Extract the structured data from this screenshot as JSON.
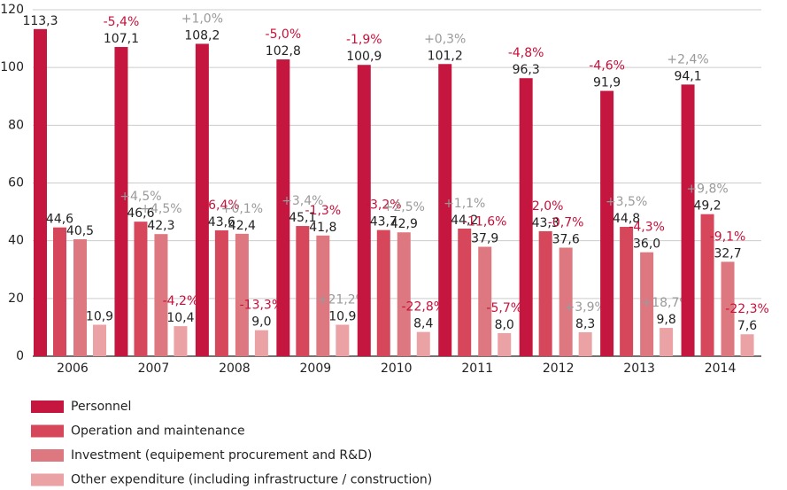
{
  "chart_data": {
    "type": "bar",
    "categories": [
      "2006",
      "2007",
      "2008",
      "2009",
      "2010",
      "2011",
      "2012",
      "2013",
      "2014"
    ],
    "ylim": [
      0,
      120
    ],
    "yticks": [
      0,
      20,
      40,
      60,
      80,
      100,
      120
    ],
    "grid": true,
    "series": [
      {
        "name": "Personnel",
        "color": "#c4163f",
        "values": [
          113.3,
          107.1,
          108.2,
          102.8,
          100.9,
          101.2,
          96.3,
          91.9,
          94.1
        ],
        "value_labels": [
          "113,3",
          "107,1",
          "108,2",
          "102,8",
          "100,9",
          "101,2",
          "96,3",
          "91,9",
          "94,1"
        ],
        "changes": [
          null,
          "-5,4%",
          "+1,0%",
          "-5,0%",
          "-1,9%",
          "+0,3%",
          "-4,8%",
          "-4,6%",
          "+2,4%"
        ]
      },
      {
        "name": "Operation and maintenance",
        "color": "#d6475b",
        "values": [
          44.6,
          46.6,
          43.6,
          45.1,
          43.7,
          44.2,
          43.3,
          44.8,
          49.2
        ],
        "value_labels": [
          "44,6",
          "46,6",
          "43,6",
          "45,1",
          "43,7",
          "44,2",
          "43,3",
          "44,8",
          "49,2"
        ],
        "changes": [
          null,
          "+4,5%",
          "-6,4%",
          "+3,4%",
          "-3,2%",
          "+1,1%",
          "-2,0%",
          "+3,5%",
          "+9,8%"
        ]
      },
      {
        "name": "Investment (equipement procurement and R&D)",
        "color": "#de7880",
        "values": [
          40.5,
          42.3,
          42.4,
          41.8,
          42.9,
          37.9,
          37.6,
          36.0,
          32.7
        ],
        "value_labels": [
          "40,5",
          "42,3",
          "42,4",
          "41,8",
          "42,9",
          "37,9",
          "37,6",
          "36,0",
          "32,7"
        ],
        "changes": [
          null,
          "+4,5%",
          "+0,1%",
          "-1,3%",
          "+2,5%",
          "-11,6%",
          "-0,7%",
          "-4,3%",
          "-9,1%"
        ]
      },
      {
        "name": "Other expenditure (including infrastructure / construction)",
        "color": "#eba2a5",
        "values": [
          10.9,
          10.4,
          9.0,
          10.9,
          8.4,
          8.0,
          8.3,
          9.8,
          7.6
        ],
        "value_labels": [
          "10,9",
          "10,4",
          "9,0",
          "10,9",
          "8,4",
          "8,0",
          "8,3",
          "9,8",
          "7,6"
        ],
        "changes": [
          null,
          "-4,2%",
          "-13,3%",
          "+21,2%",
          "-22,8%",
          "-5,7%",
          "+3,9%",
          "+18,7%",
          "-22,3%"
        ]
      }
    ]
  }
}
